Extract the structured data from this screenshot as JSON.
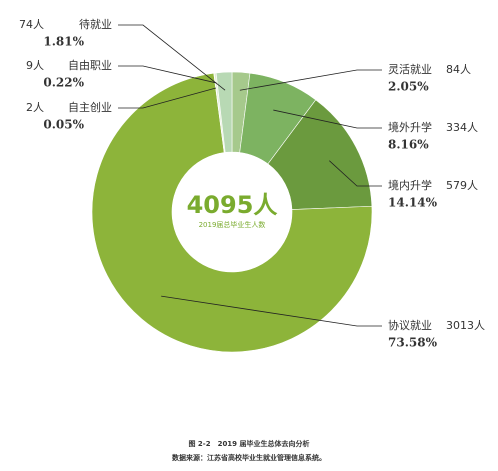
{
  "chart_data": {
    "type": "donut",
    "categories": [
      "灵活就业",
      "境外升学",
      "境内升学",
      "协议就业",
      "自主创业",
      "自由职业",
      "待就业"
    ],
    "values": [
      2.05,
      8.16,
      14.14,
      73.58,
      0.05,
      0.22,
      1.81
    ],
    "value_labels": [
      "2.05%",
      "8.16%",
      "14.14%",
      "73.58%",
      "0.05%",
      "0.22%",
      "1.81%"
    ],
    "counts": [
      84,
      334,
      579,
      3013,
      2,
      9,
      74
    ],
    "count_labels": [
      "84人",
      "334人",
      "579人",
      "3013人",
      "2人",
      "9人",
      "74人"
    ],
    "colors": [
      "#a6c98c",
      "#7db361",
      "#6b9a3e",
      "#8db43a",
      "#cfe3b4",
      "#e4eed6",
      "#b8d9b4"
    ],
    "center_label": "4095人",
    "center_caption": "2019届总毕业生人数",
    "caption": [
      "图 2-2　2019 届毕业生总体去向分析",
      "数据来源：江苏省高校毕业生就业管理信息系统。"
    ]
  }
}
